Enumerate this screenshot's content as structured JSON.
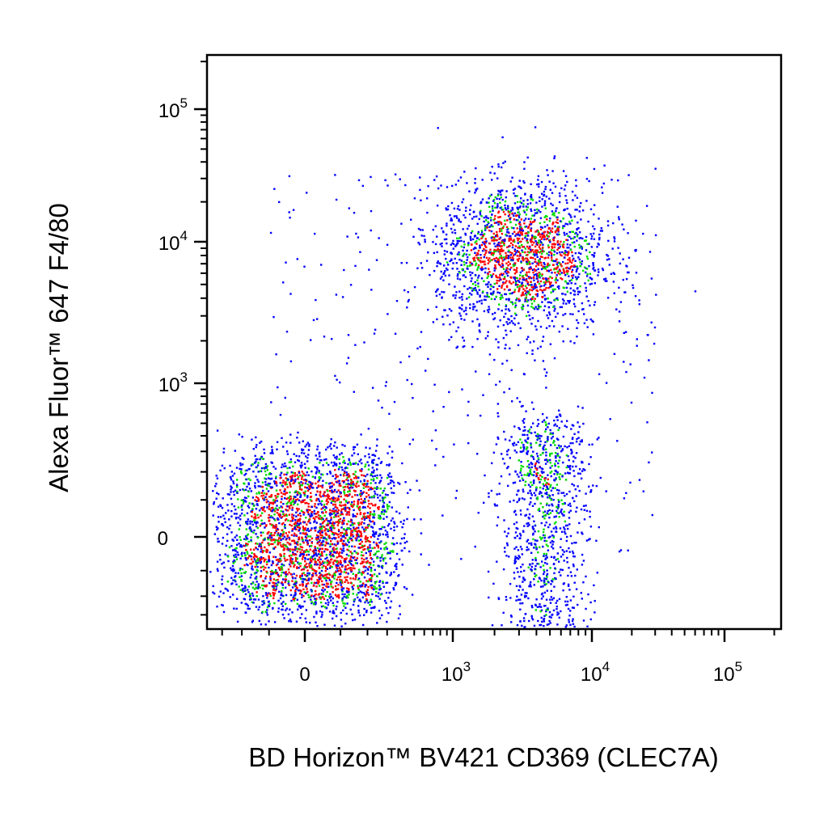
{
  "chart_data": {
    "type": "scatter",
    "xlabel": "BD Horizon™ BV421 CD369 (CLEC7A)",
    "ylabel": "Alexa Fluor™ 647 F4/80",
    "x_scale": "biexponential",
    "y_scale": "biexponential",
    "xlim": [
      -400,
      220000
    ],
    "ylim": [
      -400,
      220000
    ],
    "grid": false,
    "legend": "none",
    "x_ticks": [
      {
        "base": "0",
        "exp": "",
        "value": 0
      },
      {
        "base": "10",
        "exp": "3",
        "value": 1000
      },
      {
        "base": "10",
        "exp": "4",
        "value": 10000
      },
      {
        "base": "10",
        "exp": "5",
        "value": 100000
      }
    ],
    "y_ticks": [
      {
        "base": "0",
        "exp": "",
        "value": 0
      },
      {
        "base": "10",
        "exp": "3",
        "value": 1000
      },
      {
        "base": "10",
        "exp": "4",
        "value": 10000
      },
      {
        "base": "10",
        "exp": "5",
        "value": 100000
      }
    ],
    "density_colors": {
      "low": "#0000ff",
      "medium": "#00dd00",
      "high": "#ff0000"
    },
    "populations": [
      {
        "x_center": 20,
        "y_center": 0,
        "x_spread": 150,
        "y_spread": 140,
        "relative_size": 0.5
      },
      {
        "x_center": 3000,
        "y_center": 8000,
        "x_spread": 0.55,
        "y_spread": 0.45,
        "relative_size": 0.3
      },
      {
        "x_center": 4500,
        "y_center": 60,
        "x_spread": 0.35,
        "y_spread": 150,
        "relative_size": 0.15
      },
      {
        "x_center": 2000,
        "y_center": 800,
        "x_spread": 1.0,
        "y_spread": 1.0,
        "relative_size": 0.05
      }
    ]
  }
}
